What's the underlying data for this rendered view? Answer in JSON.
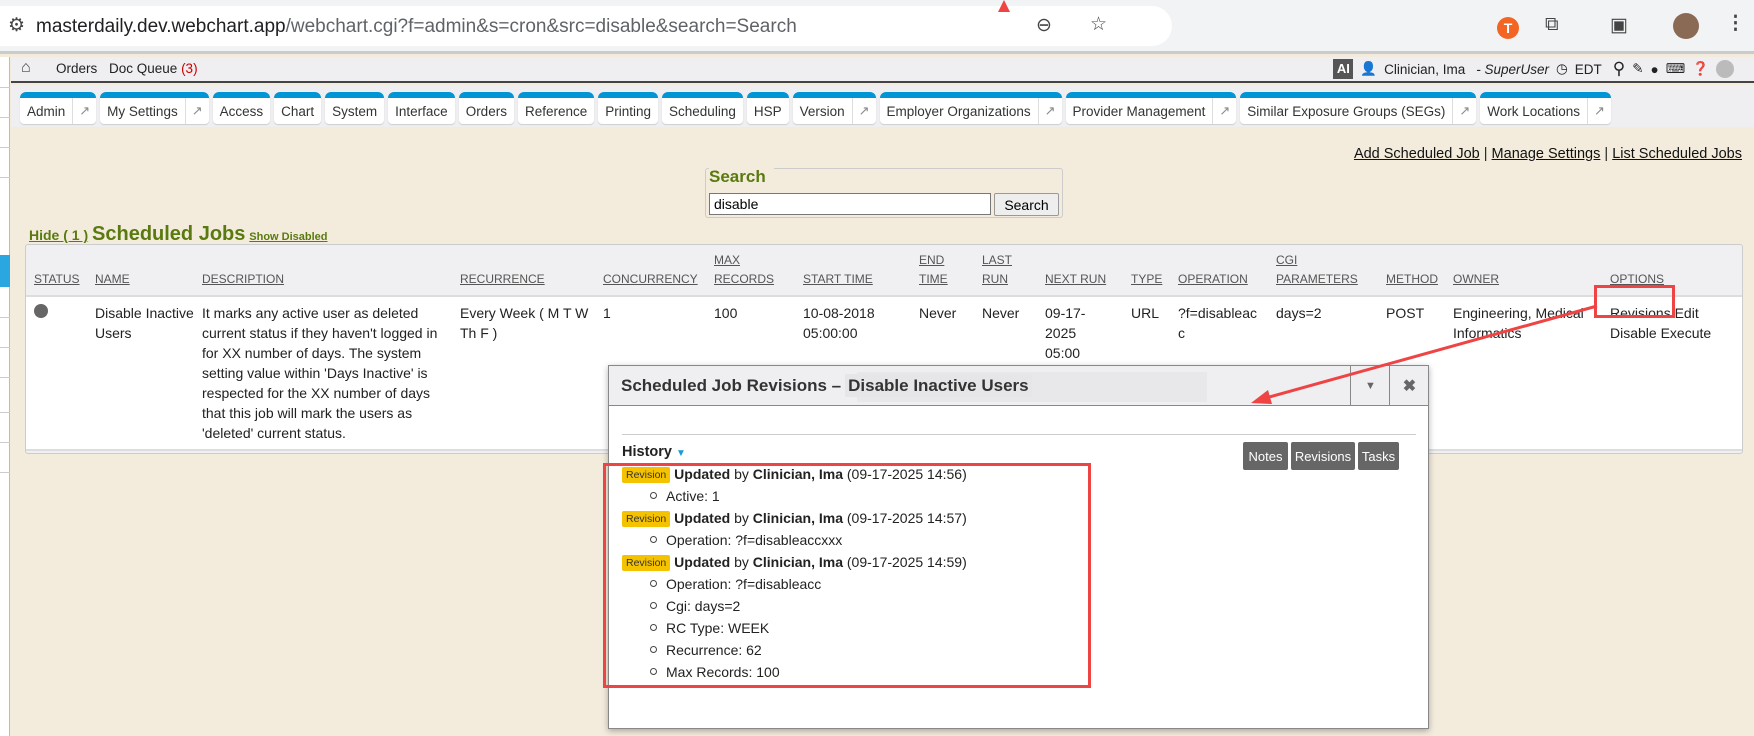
{
  "browser": {
    "url_host": "masterdaily.dev.webchart.app",
    "url_path": "/webchart.cgi?f=admin&s=cron&src=disable&search=Search"
  },
  "navbar": {
    "orders": "Orders",
    "doc_queue": "Doc Queue",
    "doc_queue_count": "(3)",
    "ai": "AI",
    "user": "Clinician, Ima",
    "role": "- SuperUser",
    "timezone": "EDT"
  },
  "tabs": [
    {
      "label": "Admin",
      "ext": true
    },
    {
      "label": "My Settings",
      "ext": true
    },
    {
      "label": "Access"
    },
    {
      "label": "Chart"
    },
    {
      "label": "System"
    },
    {
      "label": "Interface"
    },
    {
      "label": "Orders"
    },
    {
      "label": "Reference"
    },
    {
      "label": "Printing"
    },
    {
      "label": "Scheduling"
    },
    {
      "label": "HSP"
    },
    {
      "label": "Version",
      "ext": true
    },
    {
      "label": "Employer Organizations",
      "ext": true
    },
    {
      "label": "Provider Management",
      "ext": true
    },
    {
      "label": "Similar Exposure Groups (SEGs)",
      "ext": true
    },
    {
      "label": "Work Locations",
      "ext": true
    }
  ],
  "links": {
    "add": "Add Scheduled Job",
    "manage": "Manage Settings",
    "list": "List Scheduled Jobs",
    "sep": "|"
  },
  "search": {
    "legend": "Search",
    "value": "disable",
    "button": "Search"
  },
  "jobs": {
    "hide": "Hide ( 1 )",
    "title": "Scheduled Jobs",
    "show_disabled": "Show Disabled",
    "columns": [
      "STATUS",
      "NAME",
      "DESCRIPTION",
      "RECURRENCE",
      "CONCURRENCY",
      "MAX RECORDS",
      "START TIME",
      "END TIME",
      "LAST RUN",
      "NEXT RUN",
      "TYPE",
      "OPERATION",
      "CGI PARAMETERS",
      "METHOD",
      "OWNER",
      "OPTIONS"
    ],
    "row": {
      "name": "Disable Inactive Users",
      "description": "It marks any active user as deleted current status if they haven't logged in for XX number of days. The system setting value within 'Days Inactive' is respected for the XX number of days that this job will mark the users as 'deleted' current status.",
      "recurrence": "Every Week ( M T W Th F )",
      "concurrency": "1",
      "max_records": "100",
      "start_time": "10-08-2018 05:00:00",
      "end_time": "Never",
      "last_run": "Never",
      "next_run": "09-17-2025 05:00",
      "type": "URL",
      "operation": "?f=disableacc",
      "cgi": "days=2",
      "method": "POST",
      "owner": "Engineering, Medical Informatics",
      "options": [
        "Revisions",
        "Edit",
        "Disable",
        "Execute"
      ]
    }
  },
  "modal": {
    "title": "Scheduled Job Revisions –",
    "job_name": "Disable Inactive Users",
    "history": "History",
    "buttons": [
      "Notes",
      "Revisions",
      "Tasks"
    ],
    "revisions": [
      {
        "badge": "Revision",
        "action": "Updated",
        "by": "by",
        "user": "Clinician, Ima",
        "time": "(09-17-2025 14:56)",
        "changes": [
          "Active: 1"
        ]
      },
      {
        "badge": "Revision",
        "action": "Updated",
        "by": "by",
        "user": "Clinician, Ima",
        "time": "(09-17-2025 14:57)",
        "changes": [
          "Operation: ?f=disableaccxxx"
        ]
      },
      {
        "badge": "Revision",
        "action": "Updated",
        "by": "by",
        "user": "Clinician, Ima",
        "time": "(09-17-2025 14:59)",
        "changes": [
          "Operation: ?f=disableacc",
          "Cgi: days=2",
          "RC Type: WEEK",
          "Recurrence: 62",
          "Max Records: 100"
        ]
      }
    ]
  },
  "colors": {
    "accent": "#0096d6",
    "heading": "#5a7a10",
    "badge": "#f5c200",
    "annotation": "#ee4444"
  }
}
